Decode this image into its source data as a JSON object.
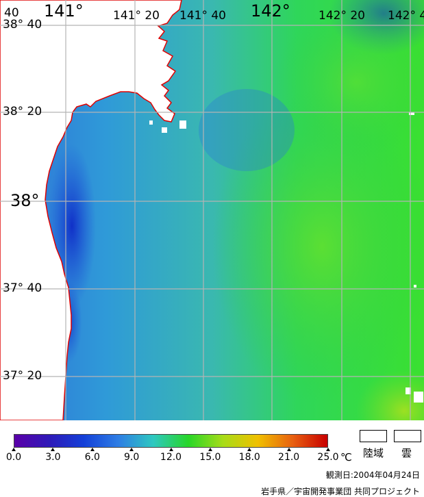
{
  "map": {
    "grid_color": "#b4b4b4",
    "coast_color": "#e00000",
    "land_color": "#ffffff",
    "longitude_labels": [
      "141°",
      "141° 20",
      "141° 40",
      "142°",
      "142° 20",
      "142° 4"
    ],
    "latitude_labels": [
      "38° 40",
      "38° 20",
      "38°",
      "37° 40",
      "37° 20"
    ],
    "corner_label": "40"
  },
  "scale": {
    "ticks": [
      "0.0",
      "3.0",
      "6.0",
      "9.0",
      "12.0",
      "15.0",
      "18.0",
      "21.0",
      "25.0"
    ],
    "unit": "℃",
    "colors": [
      "#5a00a8",
      "#2f1ab8",
      "#1440d8",
      "#2e7ee4",
      "#2ec8c0",
      "#28d628",
      "#a8dc18",
      "#f0c000",
      "#e86010",
      "#c80000"
    ]
  },
  "legend": {
    "land": "陸域",
    "cloud": "雲"
  },
  "observation": "観測日:2004年04月24日",
  "credit": "岩手県／宇宙開発事業団 共同プロジェクト"
}
